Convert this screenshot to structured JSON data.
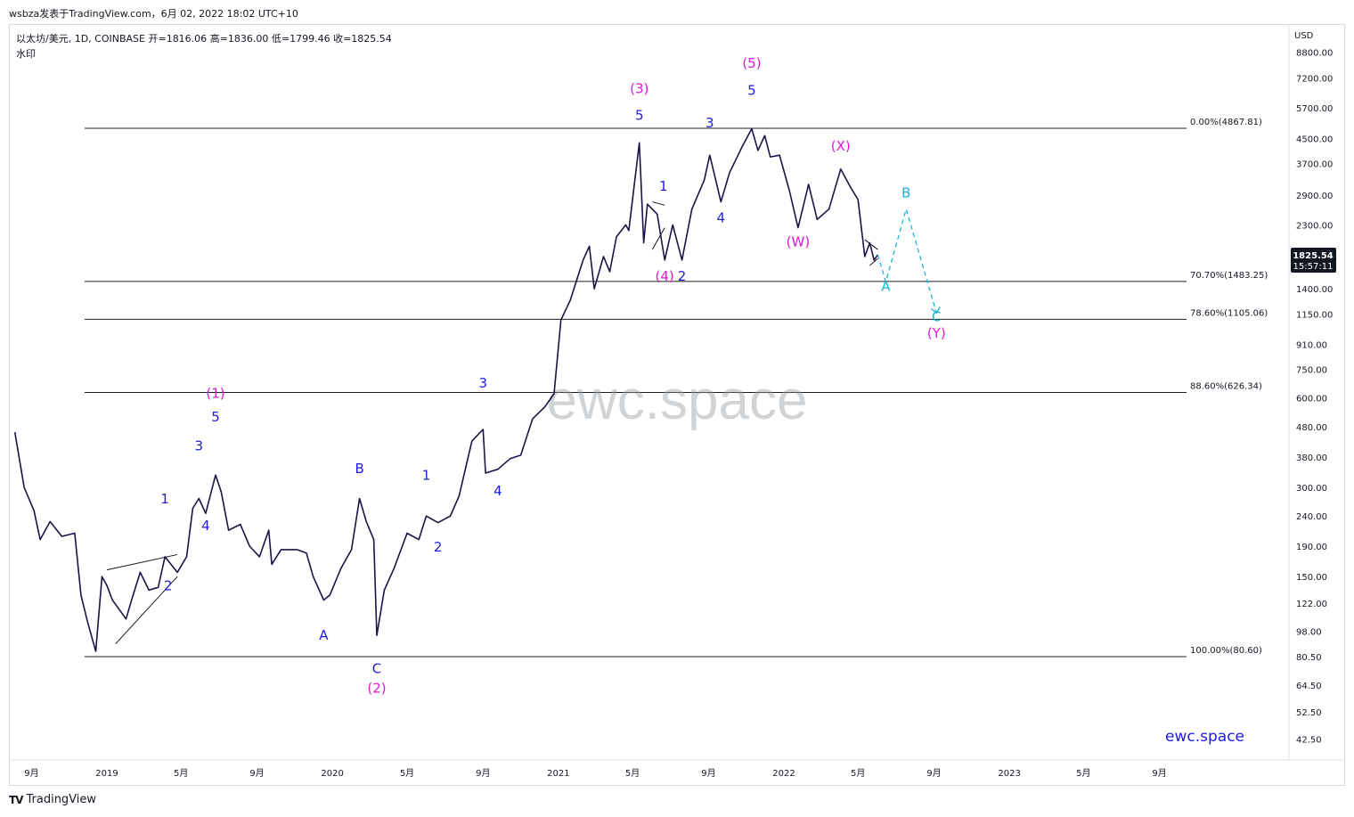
{
  "header": {
    "caption": "wsbza发表于TradingView.com，6月 02, 2022 18:02 UTC+10"
  },
  "symbol_info": {
    "line1": "以太坊/美元, 1D, COINBASE  开=1816.06  高=1836.00  低=1799.46  收=1825.54",
    "line2": "水印"
  },
  "footer": {
    "logo": "TV",
    "brand": "TradingView"
  },
  "colors": {
    "candle": "#1a1446",
    "wave_blue": "#1d1dd6",
    "wave_magenta": "#e01ad6",
    "wave_cyan": "#1ab4d6",
    "fib_line": "#1c1c1c",
    "price_badge": "#131722"
  },
  "chart_data": {
    "type": "line",
    "scale": "log",
    "currency": "USD",
    "x_ticks": [
      "9月",
      "2019",
      "5月",
      "9月",
      "2020",
      "5月",
      "9月",
      "2021",
      "5月",
      "9月",
      "2022",
      "5月",
      "9月",
      "2023",
      "5月",
      "9月"
    ],
    "y_ticks": [
      "8800.00",
      "7200.00",
      "5700.00",
      "4500.00",
      "3700.00",
      "2900.00",
      "2300.00",
      "1400.00",
      "1150.00",
      "910.00",
      "750.00",
      "600.00",
      "480.00",
      "380.00",
      "300.00",
      "240.00",
      "190.00",
      "150.00",
      "122.00",
      "98.00",
      "80.50",
      "64.50",
      "52.50",
      "42.50"
    ],
    "last_price": {
      "value": "1825.54",
      "countdown": "15:57:11"
    },
    "watermarks": {
      "center": "ewc.space",
      "corner": "ewc.space"
    },
    "fib_levels": [
      {
        "label": "0.00%(4867.81)",
        "value": 4867.81
      },
      {
        "label": "70.70%(1483.25)",
        "value": 1483.25
      },
      {
        "label": "78.60%(1105.06)",
        "value": 1105.06
      },
      {
        "label": "88.60%(626.34)",
        "value": 626.34
      },
      {
        "label": "100.00%(80.60)",
        "value": 80.6
      }
    ],
    "price_series": [
      {
        "t": "2018-08-05",
        "v": 460
      },
      {
        "t": "2018-08-20",
        "v": 300
      },
      {
        "t": "2018-09-05",
        "v": 250
      },
      {
        "t": "2018-09-15",
        "v": 200
      },
      {
        "t": "2018-10-01",
        "v": 230
      },
      {
        "t": "2018-10-20",
        "v": 205
      },
      {
        "t": "2018-11-10",
        "v": 210
      },
      {
        "t": "2018-11-20",
        "v": 130
      },
      {
        "t": "2018-12-01",
        "v": 105
      },
      {
        "t": "2018-12-14",
        "v": 84
      },
      {
        "t": "2018-12-24",
        "v": 150
      },
      {
        "t": "2019-01-01",
        "v": 140
      },
      {
        "t": "2019-01-10",
        "v": 125
      },
      {
        "t": "2019-02-01",
        "v": 108
      },
      {
        "t": "2019-02-10",
        "v": 125
      },
      {
        "t": "2019-02-24",
        "v": 155
      },
      {
        "t": "2019-03-10",
        "v": 135
      },
      {
        "t": "2019-03-25",
        "v": 138
      },
      {
        "t": "2019-04-05",
        "v": 175
      },
      {
        "t": "2019-04-25",
        "v": 155
      },
      {
        "t": "2019-05-10",
        "v": 175
      },
      {
        "t": "2019-05-20",
        "v": 255
      },
      {
        "t": "2019-05-30",
        "v": 275
      },
      {
        "t": "2019-06-10",
        "v": 245
      },
      {
        "t": "2019-06-26",
        "v": 330
      },
      {
        "t": "2019-07-05",
        "v": 290
      },
      {
        "t": "2019-07-17",
        "v": 215
      },
      {
        "t": "2019-08-05",
        "v": 225
      },
      {
        "t": "2019-08-20",
        "v": 190
      },
      {
        "t": "2019-09-05",
        "v": 175
      },
      {
        "t": "2019-09-20",
        "v": 215
      },
      {
        "t": "2019-09-25",
        "v": 165
      },
      {
        "t": "2019-10-10",
        "v": 185
      },
      {
        "t": "2019-10-25",
        "v": 185
      },
      {
        "t": "2019-11-05",
        "v": 185
      },
      {
        "t": "2019-11-20",
        "v": 180
      },
      {
        "t": "2019-12-01",
        "v": 150
      },
      {
        "t": "2019-12-18",
        "v": 125
      },
      {
        "t": "2019-12-28",
        "v": 130
      },
      {
        "t": "2020-01-15",
        "v": 160
      },
      {
        "t": "2020-02-01",
        "v": 185
      },
      {
        "t": "2020-02-14",
        "v": 275
      },
      {
        "t": "2020-02-25",
        "v": 230
      },
      {
        "t": "2020-03-08",
        "v": 200
      },
      {
        "t": "2020-03-13",
        "v": 95
      },
      {
        "t": "2020-03-25",
        "v": 135
      },
      {
        "t": "2020-04-10",
        "v": 160
      },
      {
        "t": "2020-05-01",
        "v": 210
      },
      {
        "t": "2020-05-20",
        "v": 200
      },
      {
        "t": "2020-06-01",
        "v": 240
      },
      {
        "t": "2020-06-20",
        "v": 228
      },
      {
        "t": "2020-07-10",
        "v": 240
      },
      {
        "t": "2020-07-24",
        "v": 280
      },
      {
        "t": "2020-08-14",
        "v": 430
      },
      {
        "t": "2020-09-01",
        "v": 470
      },
      {
        "t": "2020-09-05",
        "v": 335
      },
      {
        "t": "2020-09-25",
        "v": 345
      },
      {
        "t": "2020-10-15",
        "v": 375
      },
      {
        "t": "2020-11-01",
        "v": 385
      },
      {
        "t": "2020-11-20",
        "v": 510
      },
      {
        "t": "2020-12-10",
        "v": 560
      },
      {
        "t": "2020-12-25",
        "v": 620
      },
      {
        "t": "2021-01-05",
        "v": 1100
      },
      {
        "t": "2021-01-20",
        "v": 1280
      },
      {
        "t": "2021-02-10",
        "v": 1750
      },
      {
        "t": "2021-02-20",
        "v": 1950
      },
      {
        "t": "2021-02-28",
        "v": 1400
      },
      {
        "t": "2021-03-15",
        "v": 1800
      },
      {
        "t": "2021-03-25",
        "v": 1600
      },
      {
        "t": "2021-04-05",
        "v": 2100
      },
      {
        "t": "2021-04-20",
        "v": 2300
      },
      {
        "t": "2021-04-25",
        "v": 2200
      },
      {
        "t": "2021-05-12",
        "v": 4350
      },
      {
        "t": "2021-05-19",
        "v": 2000
      },
      {
        "t": "2021-05-25",
        "v": 2700
      },
      {
        "t": "2021-06-10",
        "v": 2500
      },
      {
        "t": "2021-06-22",
        "v": 1750
      },
      {
        "t": "2021-07-05",
        "v": 2300
      },
      {
        "t": "2021-07-20",
        "v": 1750
      },
      {
        "t": "2021-08-05",
        "v": 2600
      },
      {
        "t": "2021-08-25",
        "v": 3250
      },
      {
        "t": "2021-09-03",
        "v": 3950
      },
      {
        "t": "2021-09-21",
        "v": 2750
      },
      {
        "t": "2021-10-05",
        "v": 3450
      },
      {
        "t": "2021-10-25",
        "v": 4200
      },
      {
        "t": "2021-11-10",
        "v": 4850
      },
      {
        "t": "2021-11-20",
        "v": 4100
      },
      {
        "t": "2021-12-01",
        "v": 4600
      },
      {
        "t": "2021-12-10",
        "v": 3900
      },
      {
        "t": "2021-12-25",
        "v": 3950
      },
      {
        "t": "2022-01-10",
        "v": 3000
      },
      {
        "t": "2022-01-24",
        "v": 2250
      },
      {
        "t": "2022-02-10",
        "v": 3150
      },
      {
        "t": "2022-02-24",
        "v": 2400
      },
      {
        "t": "2022-03-15",
        "v": 2600
      },
      {
        "t": "2022-04-03",
        "v": 3550
      },
      {
        "t": "2022-04-20",
        "v": 3050
      },
      {
        "t": "2022-05-01",
        "v": 2800
      },
      {
        "t": "2022-05-12",
        "v": 1800
      },
      {
        "t": "2022-05-20",
        "v": 2000
      },
      {
        "t": "2022-05-27",
        "v": 1750
      },
      {
        "t": "2022-06-02",
        "v": 1825
      }
    ],
    "projection": [
      {
        "t": "2022-06-02",
        "v": 1825
      },
      {
        "t": "2022-06-15",
        "v": 1480
      },
      {
        "t": "2022-07-18",
        "v": 2600
      },
      {
        "t": "2022-09-05",
        "v": 1160
      }
    ],
    "triangles": [
      [
        {
          "t": "2019-01-01",
          "v": 158
        },
        {
          "t": "2019-04-25",
          "v": 178
        },
        {
          "t": "2019-01-15",
          "v": 89
        },
        {
          "t": "2019-04-25",
          "v": 150
        }
      ],
      [
        {
          "t": "2021-06-02",
          "v": 2750
        },
        {
          "t": "2021-06-22",
          "v": 2680
        },
        {
          "t": "2021-06-02",
          "v": 1900
        },
        {
          "t": "2021-06-22",
          "v": 2250
        }
      ],
      [
        {
          "t": "2022-05-12",
          "v": 2050
        },
        {
          "t": "2022-06-02",
          "v": 1900
        },
        {
          "t": "2022-05-20",
          "v": 1680
        },
        {
          "t": "2022-06-02",
          "v": 1770
        }
      ]
    ],
    "wave_labels": [
      {
        "text": "(1)",
        "t": "2019-06-26",
        "v": 600,
        "color": "magenta"
      },
      {
        "text": "5",
        "t": "2019-06-26",
        "v": 500,
        "color": "blue"
      },
      {
        "text": "3",
        "t": "2019-05-30",
        "v": 400,
        "color": "blue"
      },
      {
        "text": "1",
        "t": "2019-04-05",
        "v": 265,
        "color": "blue"
      },
      {
        "text": "4",
        "t": "2019-06-10",
        "v": 215,
        "color": "blue"
      },
      {
        "text": "2",
        "t": "2019-04-10",
        "v": 135,
        "color": "blue"
      },
      {
        "text": "A",
        "t": "2019-12-18",
        "v": 92,
        "color": "blue"
      },
      {
        "text": "B",
        "t": "2020-02-14",
        "v": 335,
        "color": "blue"
      },
      {
        "text": "C",
        "t": "2020-03-13",
        "v": 71,
        "color": "blue"
      },
      {
        "text": "(2)",
        "t": "2020-03-13",
        "v": 61,
        "color": "magenta"
      },
      {
        "text": "1",
        "t": "2020-06-01",
        "v": 318,
        "color": "blue"
      },
      {
        "text": "2",
        "t": "2020-06-20",
        "v": 182,
        "color": "blue"
      },
      {
        "text": "3",
        "t": "2020-09-01",
        "v": 650,
        "color": "blue"
      },
      {
        "text": "4",
        "t": "2020-09-25",
        "v": 282,
        "color": "blue"
      },
      {
        "text": "(3)",
        "t": "2021-05-12",
        "v": 6400,
        "color": "magenta"
      },
      {
        "text": "5",
        "t": "2021-05-12",
        "v": 5200,
        "color": "blue"
      },
      {
        "text": "1",
        "t": "2021-06-20",
        "v": 3000,
        "color": "blue"
      },
      {
        "text": "(4)",
        "t": "2021-06-22",
        "v": 1490,
        "color": "magenta"
      },
      {
        "text": "2",
        "t": "2021-07-20",
        "v": 1490,
        "color": "blue"
      },
      {
        "text": "3",
        "t": "2021-09-03",
        "v": 4900,
        "color": "blue"
      },
      {
        "text": "4",
        "t": "2021-09-21",
        "v": 2350,
        "color": "blue"
      },
      {
        "text": "(5)",
        "t": "2021-11-10",
        "v": 7800,
        "color": "magenta"
      },
      {
        "text": "5",
        "t": "2021-11-10",
        "v": 6300,
        "color": "blue"
      },
      {
        "text": "(W)",
        "t": "2022-01-24",
        "v": 1950,
        "color": "magenta"
      },
      {
        "text": "(X)",
        "t": "2022-04-03",
        "v": 4100,
        "color": "magenta"
      },
      {
        "text": "A",
        "t": "2022-06-15",
        "v": 1380,
        "color": "cyan"
      },
      {
        "text": "B",
        "t": "2022-07-18",
        "v": 2850,
        "color": "cyan"
      },
      {
        "text": "C",
        "t": "2022-09-05",
        "v": 1090,
        "color": "cyan"
      },
      {
        "text": "(Y)",
        "t": "2022-09-05",
        "v": 960,
        "color": "magenta"
      }
    ]
  }
}
